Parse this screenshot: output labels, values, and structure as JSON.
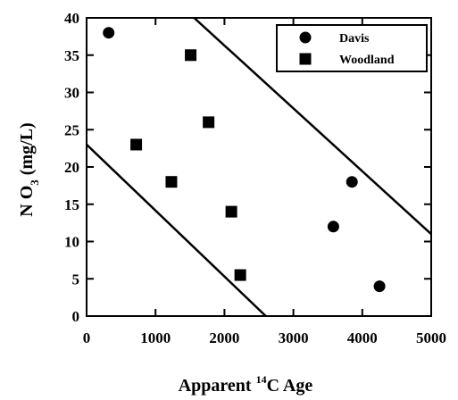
{
  "chart_data": {
    "type": "scatter",
    "xlabel": [
      "Apparent ",
      "14",
      "C Age"
    ],
    "ylabel": [
      "N O",
      "3",
      "  (mg/L)"
    ],
    "xlim": [
      0,
      5000
    ],
    "xticks": [
      0,
      1000,
      2000,
      3000,
      4000,
      5000
    ],
    "ylim": [
      0,
      40
    ],
    "yticks": [
      0,
      5,
      10,
      15,
      20,
      25,
      30,
      35,
      40
    ],
    "legend": "upper right",
    "series": [
      {
        "name": "Davis",
        "marker": "circle",
        "color": "#000000",
        "x": [
          320,
          3850,
          3580,
          4250
        ],
        "values": [
          38,
          18,
          12,
          4
        ]
      },
      {
        "name": "Woodland",
        "marker": "square",
        "color": "#000000",
        "x": [
          1510,
          1770,
          720,
          1230,
          2100,
          2230
        ],
        "values": [
          35,
          26,
          23,
          18,
          14,
          5.5
        ]
      }
    ],
    "lines": [
      {
        "x": [
          1560,
          5000
        ],
        "values": [
          40,
          11
        ]
      },
      {
        "x": [
          0,
          2600
        ],
        "values": [
          23,
          0
        ]
      }
    ]
  }
}
